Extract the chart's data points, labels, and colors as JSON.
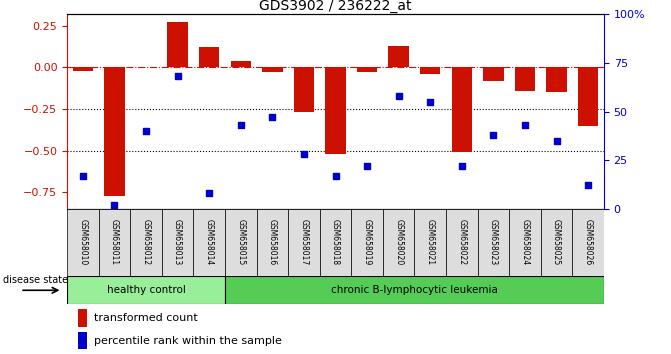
{
  "title": "GDS3902 / 236222_at",
  "samples": [
    "GSM658010",
    "GSM658011",
    "GSM658012",
    "GSM658013",
    "GSM658014",
    "GSM658015",
    "GSM658016",
    "GSM658017",
    "GSM658018",
    "GSM658019",
    "GSM658020",
    "GSM658021",
    "GSM658022",
    "GSM658023",
    "GSM658024",
    "GSM658025",
    "GSM658026"
  ],
  "bar_values": [
    -0.02,
    -0.77,
    0.0,
    0.27,
    0.12,
    0.04,
    -0.03,
    -0.27,
    -0.52,
    -0.03,
    0.13,
    -0.04,
    -0.51,
    -0.08,
    -0.14,
    -0.15,
    -0.35
  ],
  "dot_values": [
    17,
    2,
    40,
    68,
    8,
    43,
    47,
    28,
    17,
    22,
    58,
    55,
    22,
    38,
    43,
    35,
    12
  ],
  "bar_color": "#CC1100",
  "dot_color": "#0000CC",
  "healthy_count": 5,
  "healthy_label": "healthy control",
  "leukemia_label": "chronic B-lymphocytic leukemia",
  "healthy_color": "#99EE99",
  "leukemia_color": "#55CC55",
  "disease_state_label": "disease state",
  "legend_bar": "transformed count",
  "legend_dot": "percentile rank within the sample",
  "ylim_left": [
    -0.85,
    0.32
  ],
  "ylim_right": [
    0,
    100
  ],
  "yticks_left": [
    -0.75,
    -0.5,
    -0.25,
    0.0,
    0.25
  ],
  "yticks_right": [
    0,
    25,
    50,
    75,
    100
  ],
  "hline_y": 0.0,
  "dotted_lines": [
    -0.25,
    -0.5
  ],
  "right_axis_color": "#0000CC",
  "left_axis_color": "#CC1100",
  "bg_color": "#FFFFFF",
  "xlab_bg": "#DDDDDD"
}
